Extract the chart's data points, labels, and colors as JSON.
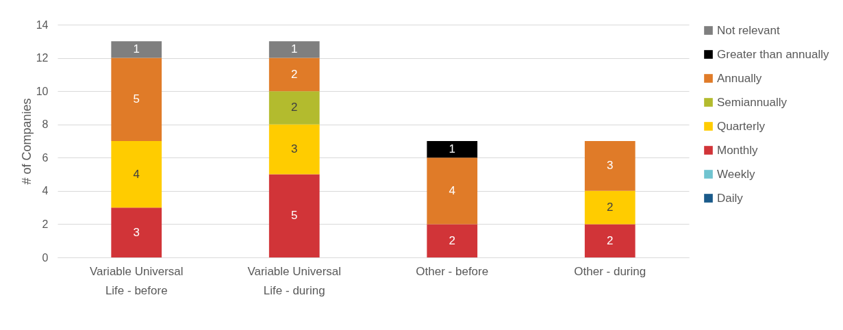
{
  "chart_data": {
    "type": "bar",
    "stacked": true,
    "ylabel": "# of Companies",
    "categories": [
      "Variable Universal Life - before",
      "Variable Universal Life - during",
      "Other - before",
      "Other - during"
    ],
    "series": [
      {
        "name": "Daily",
        "color": "#1a5a8a",
        "values": [
          null,
          null,
          null,
          null
        ]
      },
      {
        "name": "Weekly",
        "color": "#70c4d0",
        "values": [
          null,
          null,
          null,
          null
        ]
      },
      {
        "name": "Monthly",
        "color": "#d13438",
        "values": [
          3,
          5,
          2,
          2
        ]
      },
      {
        "name": "Quarterly",
        "color": "#ffcc00",
        "values": [
          4,
          3,
          null,
          2
        ]
      },
      {
        "name": "Semiannually",
        "color": "#b3bb2e",
        "values": [
          null,
          2,
          null,
          null
        ]
      },
      {
        "name": "Annually",
        "color": "#e07b28",
        "values": [
          5,
          2,
          4,
          3
        ]
      },
      {
        "name": "Greater than annually",
        "color": "#000000",
        "values": [
          null,
          null,
          1,
          null
        ]
      },
      {
        "name": "Not relevant",
        "color": "#7f7f7f",
        "values": [
          1,
          1,
          null,
          null
        ]
      }
    ],
    "ylim": [
      0,
      14
    ],
    "yticks": [
      0,
      2,
      4,
      6,
      8,
      10,
      12,
      14
    ],
    "grid": "y",
    "legend": "right",
    "data_labels": true
  }
}
